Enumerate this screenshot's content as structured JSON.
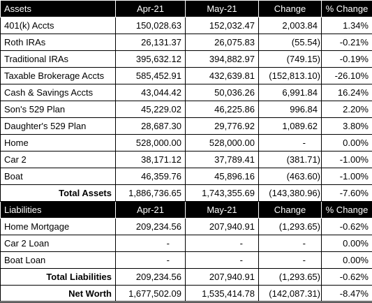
{
  "assets": {
    "header": [
      "Assets",
      "Apr-21",
      "May-21",
      "Change",
      "% Change"
    ],
    "rows": [
      [
        "401(k) Accts",
        "150,028.63",
        "152,032.47",
        "2,003.84",
        "1.34%"
      ],
      [
        "Roth IRAs",
        "26,131.37",
        "26,075.83",
        "(55.54)",
        "-0.21%"
      ],
      [
        "Traditional IRAs",
        "395,632.12",
        "394,882.97",
        "(749.15)",
        "-0.19%"
      ],
      [
        "Taxable Brokerage Accts",
        "585,452.91",
        "432,639.81",
        "(152,813.10)",
        "-26.10%"
      ],
      [
        "Cash & Savings Accts",
        "43,044.42",
        "50,036.26",
        "6,991.84",
        "16.24%"
      ],
      [
        "Son's 529 Plan",
        "45,229.02",
        "46,225.86",
        "996.84",
        "2.20%"
      ],
      [
        "Daughter's 529 Plan",
        "28,687.30",
        "29,776.92",
        "1,089.62",
        "3.80%"
      ],
      [
        "Home",
        "528,000.00",
        "528,000.00",
        "-",
        "0.00%"
      ],
      [
        "Car 2",
        "38,171.12",
        "37,789.41",
        "(381.71)",
        "-1.00%"
      ],
      [
        "Boat",
        "46,359.76",
        "45,896.16",
        "(463.60)",
        "-1.00%"
      ]
    ],
    "total": [
      "Total Assets",
      "1,886,736.65",
      "1,743,355.69",
      "(143,380.96)",
      "-7.60%"
    ]
  },
  "liabilities": {
    "header": [
      "Liabilities",
      "Apr-21",
      "May-21",
      "Change",
      "% Change"
    ],
    "rows": [
      [
        "Home Mortgage",
        "209,234.56",
        "207,940.91",
        "(1,293.65)",
        "-0.62%"
      ],
      [
        "Car 2 Loan",
        "-",
        "-",
        "-",
        "0.00%"
      ],
      [
        "Boat Loan",
        "-",
        "-",
        "-",
        "0.00%"
      ]
    ],
    "total": [
      "Total Liabilities",
      "209,234.56",
      "207,940.91",
      "(1,293.65)",
      "-0.62%"
    ]
  },
  "net_worth": [
    "Net Worth",
    "1,677,502.09",
    "1,535,414.78",
    "(142,087.31)",
    "-8.47%"
  ]
}
